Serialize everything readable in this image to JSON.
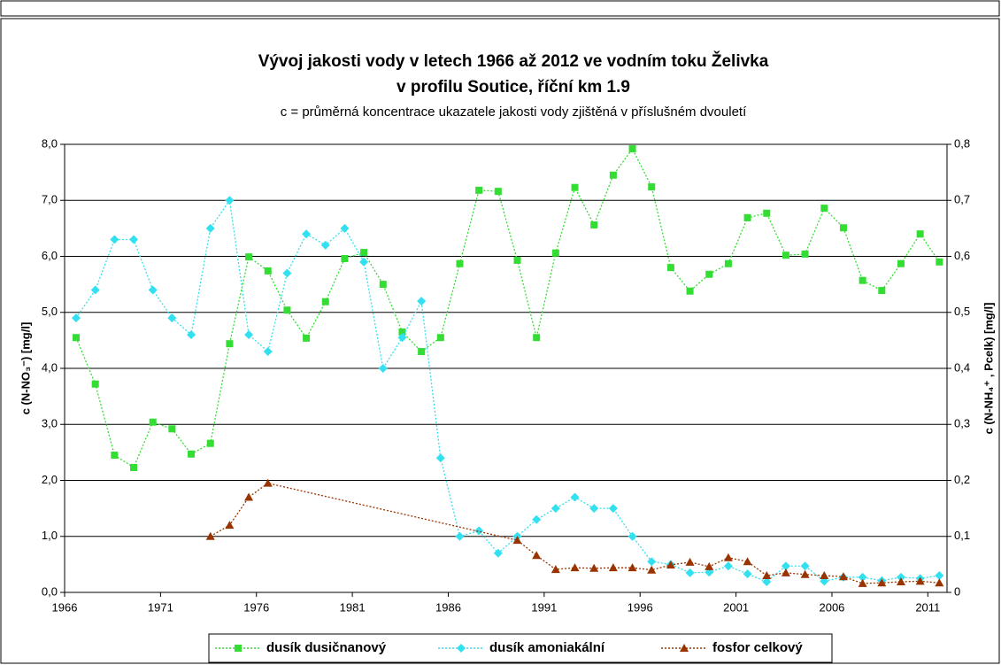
{
  "chart_data": {
    "type": "line",
    "title": "Vývoj jakosti vody v letech 1966 až 2012 ve vodním toku Želivka",
    "title2": "v profilu Soutice, říční km 1.9",
    "subtitle": "c = průměrná koncentrace ukazatele jakosti vody zjištěná v příslušném dvouletí",
    "y_label": "c (N-NO₃⁻) [mg/l]",
    "y2_label": "c (N-NH₄⁺ , Pcelk) [mg/l]",
    "x": [
      1966.6,
      1967.6,
      1968.6,
      1969.6,
      1970.6,
      1971.6,
      1972.6,
      1973.6,
      1974.6,
      1975.6,
      1976.6,
      1977.6,
      1978.6,
      1979.6,
      1980.6,
      1981.6,
      1982.6,
      1983.6,
      1984.6,
      1985.6,
      1986.6,
      1987.6,
      1988.6,
      1989.6,
      1990.6,
      1991.6,
      1992.6,
      1993.6,
      1994.6,
      1995.6,
      1996.6,
      1997.6,
      1998.6,
      1999.6,
      2000.6,
      2001.6,
      2002.6,
      2003.6,
      2004.6,
      2005.6,
      2006.6,
      2007.6,
      2008.6,
      2009.6,
      2010.6,
      2011.6
    ],
    "xlim": [
      1966,
      2012
    ],
    "xticks": [
      1966,
      1971,
      1976,
      1981,
      1986,
      1991,
      1996,
      2001,
      2006,
      2011
    ],
    "ylim": [
      0,
      8
    ],
    "yticks": [
      {
        "value": 0,
        "label": "0,0"
      },
      {
        "value": 1,
        "label": "1,0"
      },
      {
        "value": 2,
        "label": "2,0"
      },
      {
        "value": 3,
        "label": "3,0"
      },
      {
        "value": 4,
        "label": "4,0"
      },
      {
        "value": 5,
        "label": "5,0"
      },
      {
        "value": 6,
        "label": "6,0"
      },
      {
        "value": 7,
        "label": "7,0"
      },
      {
        "value": 8,
        "label": "8,0"
      }
    ],
    "y2lim": [
      0,
      0.8
    ],
    "y2ticks": [
      0,
      {
        "value": 0.1,
        "label": "0,1"
      },
      {
        "value": 0.2,
        "label": "0,2"
      },
      {
        "value": 0.3,
        "label": "0,3"
      },
      {
        "value": 0.4,
        "label": "0,4"
      },
      {
        "value": 0.5,
        "label": "0,5"
      },
      {
        "value": 0.6,
        "label": "0,6"
      },
      {
        "value": 0.7,
        "label": "0,7"
      },
      {
        "value": 0.8,
        "label": "0,8"
      }
    ],
    "grid": true,
    "legend": "bottom",
    "series": [
      {
        "name": "dusík dusičnanový",
        "color": "#33dd33",
        "marker": "square",
        "values": [
          4.55,
          3.72,
          2.45,
          2.23,
          3.04,
          2.92,
          2.47,
          2.66,
          4.44,
          5.99,
          5.74,
          5.04,
          4.54,
          5.19,
          5.96,
          6.07,
          5.5,
          4.65,
          4.3,
          4.55,
          5.87,
          7.18,
          7.16,
          5.93,
          4.55,
          6.06,
          7.23,
          6.56,
          7.45,
          7.92,
          7.24,
          5.8,
          5.38,
          5.68,
          5.87,
          6.69,
          6.77,
          6.02,
          6.04,
          6.86,
          6.51,
          5.57,
          5.39,
          5.87,
          6.4,
          5.9
        ]
      },
      {
        "name": "dusík amoniakální",
        "color": "#33e0f0",
        "marker": "diamond",
        "axis": "y2",
        "values": [
          0.49,
          0.54,
          0.63,
          0.63,
          0.54,
          0.49,
          0.46,
          0.65,
          0.7,
          0.46,
          0.43,
          0.57,
          0.64,
          0.62,
          0.65,
          0.59,
          0.4,
          0.455,
          0.52,
          0.24,
          0.1,
          0.11,
          0.07,
          0.1,
          0.13,
          0.15,
          0.17,
          0.15,
          0.15,
          0.1,
          0.055,
          0.05,
          0.035,
          0.036,
          0.047,
          0.033,
          0.019,
          0.047,
          0.047,
          0.02,
          0.027,
          0.027,
          0.021,
          0.027,
          0.025,
          0.03
        ]
      },
      {
        "name": "fosfor celkový",
        "color": "#993300",
        "marker": "triangle",
        "axis": "y2",
        "x": [
          1973.6,
          1974.6,
          1975.6,
          1976.6,
          1989.6,
          1990.6,
          1991.6,
          1992.6,
          1993.6,
          1994.6,
          1995.6,
          1996.6,
          1997.6,
          1998.6,
          1999.6,
          2000.6,
          2001.6,
          2002.6,
          2003.6,
          2004.6,
          2005.6,
          2006.6,
          2007.6,
          2008.6,
          2009.6,
          2010.6,
          2011.6
        ],
        "values": [
          0.1,
          0.12,
          0.17,
          0.195,
          0.093,
          0.066,
          0.041,
          0.044,
          0.043,
          0.044,
          0.044,
          0.04,
          0.049,
          0.054,
          0.046,
          0.062,
          0.055,
          0.03,
          0.035,
          0.032,
          0.03,
          0.028,
          0.016,
          0.017,
          0.019,
          0.02,
          0.017
        ]
      }
    ]
  }
}
